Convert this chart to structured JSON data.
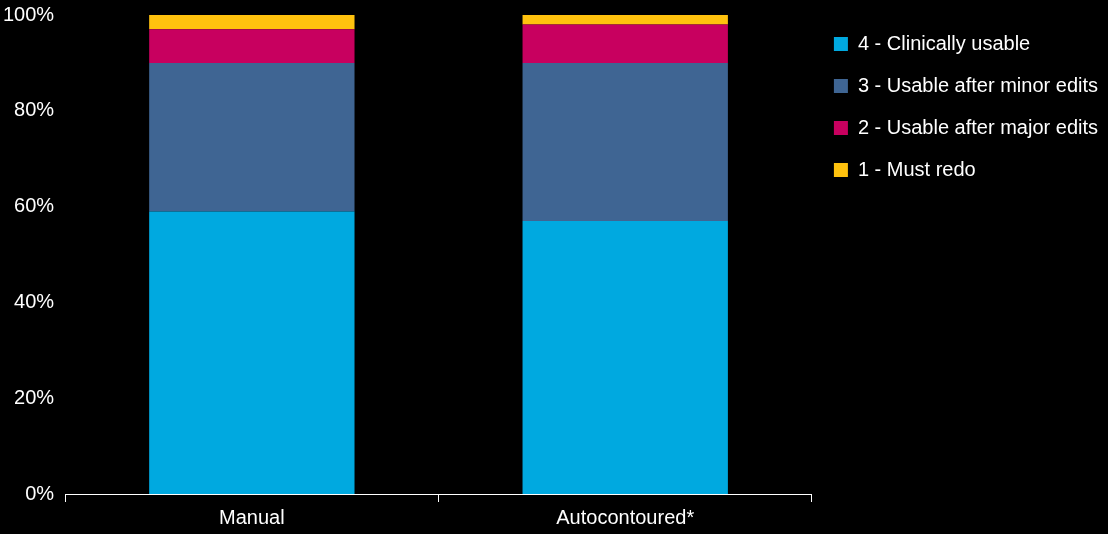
{
  "chart_data": {
    "type": "bar",
    "stacked": true,
    "categories": [
      "Manual",
      "Autocontoured*"
    ],
    "series": [
      {
        "name": "4 - Clinically usable",
        "color": "#00a9e0",
        "values": [
          59,
          57
        ]
      },
      {
        "name": "3 - Usable after minor edits",
        "color": "#3f6593",
        "values": [
          31,
          33
        ]
      },
      {
        "name": "2 - Usable after major edits",
        "color": "#c8005f",
        "values": [
          7,
          8
        ]
      },
      {
        "name": "1 - Must redo",
        "color": "#ffc20e",
        "values": [
          3,
          2
        ]
      }
    ],
    "ylim": [
      0,
      100
    ],
    "yticks": [
      {
        "value": 0,
        "label": "0%"
      },
      {
        "value": 20,
        "label": "20%"
      },
      {
        "value": 40,
        "label": "40%"
      },
      {
        "value": 60,
        "label": "60%"
      },
      {
        "value": 80,
        "label": "80%"
      },
      {
        "value": 100,
        "label": "100%"
      }
    ],
    "grid": false,
    "legend": "top right"
  }
}
